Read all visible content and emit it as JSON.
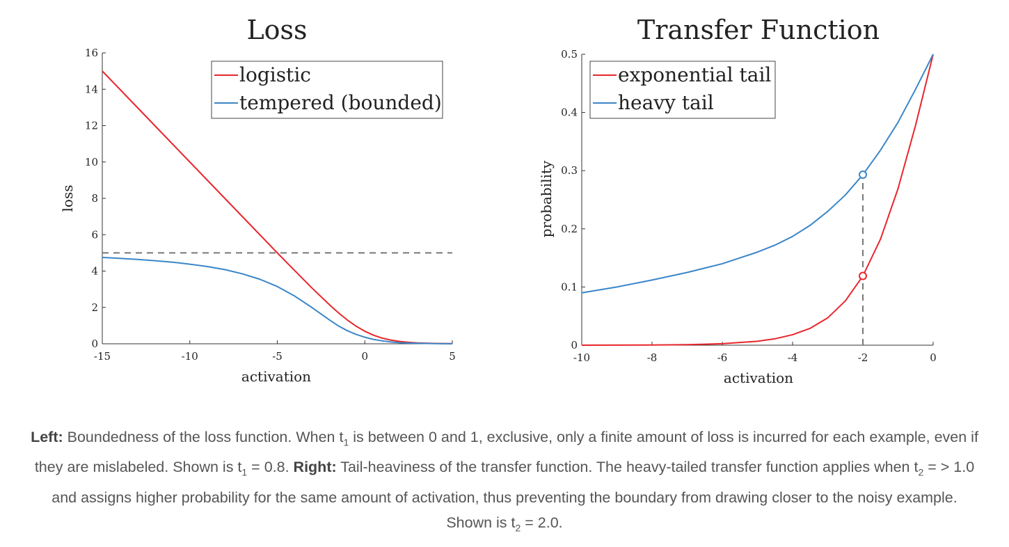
{
  "chart_data": [
    {
      "type": "line",
      "title": "Loss",
      "xlabel": "activation",
      "ylabel": "loss",
      "xlim": [
        -15,
        5
      ],
      "ylim": [
        0,
        16
      ],
      "xticks": [
        -15,
        -10,
        -5,
        0,
        5
      ],
      "yticks": [
        0,
        2,
        4,
        6,
        8,
        10,
        12,
        14,
        16
      ],
      "legend_position": "top-center",
      "reference_lines": [
        {
          "orientation": "horizontal",
          "y": 5,
          "style": "dashed",
          "color": "#777777"
        }
      ],
      "series": [
        {
          "name": "logistic",
          "color": "#e8262c",
          "x": [
            -15,
            -14,
            -13,
            -12,
            -11,
            -10,
            -9,
            -8,
            -7,
            -6,
            -5,
            -4,
            -3,
            -2,
            -1.5,
            -1,
            -0.5,
            0,
            0.5,
            1,
            1.5,
            2,
            2.5,
            3,
            4,
            5
          ],
          "y": [
            15.0,
            14.0,
            13.0,
            12.0,
            11.0,
            10.0,
            9.0,
            8.0,
            7.0,
            6.0,
            5.0,
            4.02,
            3.05,
            2.13,
            1.7,
            1.31,
            0.97,
            0.69,
            0.47,
            0.31,
            0.2,
            0.13,
            0.08,
            0.05,
            0.02,
            0.01
          ]
        },
        {
          "name": "tempered (bounded)",
          "color": "#3a86c8",
          "x": [
            -15,
            -14,
            -13,
            -12,
            -11,
            -10,
            -9,
            -8,
            -7,
            -6,
            -5,
            -4,
            -3,
            -2,
            -1.5,
            -1,
            -0.5,
            0,
            0.5,
            1,
            1.5,
            2,
            2.5,
            3,
            4,
            5
          ],
          "y": [
            4.75,
            4.7,
            4.64,
            4.57,
            4.49,
            4.38,
            4.25,
            4.08,
            3.85,
            3.55,
            3.15,
            2.62,
            1.98,
            1.3,
            0.98,
            0.72,
            0.52,
            0.36,
            0.24,
            0.16,
            0.1,
            0.06,
            0.04,
            0.03,
            0.01,
            0.0
          ]
        }
      ]
    },
    {
      "type": "line",
      "title": "Transfer Function",
      "xlabel": "activation",
      "ylabel": "probability",
      "xlim": [
        -10,
        0
      ],
      "ylim": [
        0,
        0.5
      ],
      "xticks": [
        -10,
        -8,
        -6,
        -4,
        -2,
        0
      ],
      "yticks": [
        0,
        0.1,
        0.2,
        0.3,
        0.4,
        0.5
      ],
      "legend_position": "top-left",
      "reference_lines": [
        {
          "orientation": "vertical",
          "x": -2,
          "y_range": [
            0,
            0.293
          ],
          "style": "dashed",
          "color": "#777777"
        }
      ],
      "markers": [
        {
          "x": -2,
          "y": 0.293,
          "series": "heavy tail",
          "style": "open-circle"
        },
        {
          "x": -2,
          "y": 0.119,
          "series": "exponential tail",
          "style": "open-circle"
        }
      ],
      "series": [
        {
          "name": "exponential tail",
          "color": "#e8262c",
          "x": [
            -10,
            -9,
            -8,
            -7,
            -6,
            -5,
            -4.5,
            -4,
            -3.5,
            -3,
            -2.5,
            -2,
            -1.5,
            -1,
            -0.5,
            0
          ],
          "y": [
            0.0,
            0.0001,
            0.0003,
            0.0009,
            0.0025,
            0.0067,
            0.011,
            0.018,
            0.029,
            0.047,
            0.076,
            0.119,
            0.182,
            0.269,
            0.378,
            0.5
          ]
        },
        {
          "name": "heavy tail",
          "color": "#3a86c8",
          "x": [
            -10,
            -9,
            -8,
            -7,
            -6,
            -5,
            -4.5,
            -4,
            -3.5,
            -3,
            -2.5,
            -2,
            -1.5,
            -1,
            -0.5,
            0
          ],
          "y": [
            0.09,
            0.1,
            0.112,
            0.125,
            0.14,
            0.16,
            0.172,
            0.187,
            0.206,
            0.23,
            0.258,
            0.293,
            0.335,
            0.383,
            0.44,
            0.5
          ]
        }
      ]
    }
  ],
  "caption": {
    "left_label": "Left:",
    "left_text_1": " Boundedness of the loss function. When t",
    "left_sub_1": "1",
    "left_text_2": " is between 0 and 1, exclusive, only a finite amount of loss is incurred for each example, even if they are mislabeled. Shown is t",
    "left_sub_2": "1",
    "left_text_3": " = 0.8. ",
    "right_label": "Right:",
    "right_text_1": " Tail-heaviness of the transfer function. The heavy-tailed transfer function applies when t",
    "right_sub_1": "2",
    "right_text_2": " = > 1.0 and assigns higher probability for the same amount of activation, thus preventing the boundary from drawing closer to the noisy example. Shown is t",
    "right_sub_2": "2",
    "right_text_3": " = 2.0."
  }
}
